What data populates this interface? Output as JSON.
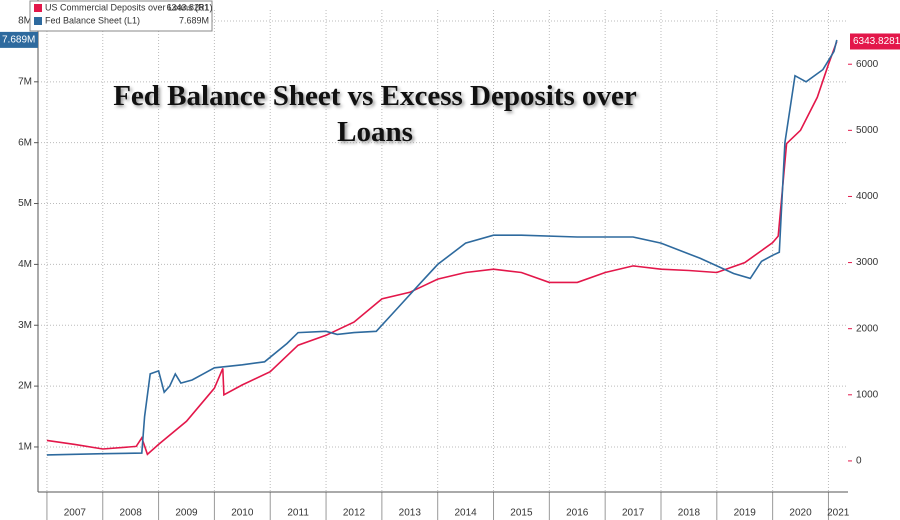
{
  "chart_data": {
    "type": "line",
    "title": "Fed Balance Sheet vs Excess Deposits over Loans",
    "xlim": [
      2006.84,
      2021.35
    ],
    "xticks": [
      2007,
      2008,
      2009,
      2010,
      2011,
      2012,
      2013,
      2014,
      2015,
      2016,
      2017,
      2018,
      2019,
      2020,
      2021
    ],
    "ylim": [
      0.26,
      8.18
    ],
    "yticks": [
      {
        "value": 1,
        "label": "1M"
      },
      {
        "value": 2,
        "label": "2M"
      },
      {
        "value": 3,
        "label": "3M"
      },
      {
        "value": 4,
        "label": "4M"
      },
      {
        "value": 5,
        "label": "5M"
      },
      {
        "value": 6,
        "label": "6M"
      },
      {
        "value": 7,
        "label": "7M"
      },
      {
        "value": 8,
        "label": "8M"
      }
    ],
    "y2lim": [
      -470,
      6820
    ],
    "y2ticks": [
      0,
      1000,
      2000,
      3000,
      4000,
      5000,
      6000
    ],
    "grid": true,
    "legend": "top-left",
    "series": [
      {
        "name": "US Commercial Deposits over Loans (R1)",
        "color": "#e3174a",
        "axis": "y2",
        "last_value_label": "6343.8281",
        "x": [
          2007.0,
          2007.5,
          2008.0,
          2008.6,
          2008.7,
          2008.8,
          2009.0,
          2009.5,
          2009.9,
          2010.0,
          2010.15,
          2010.17,
          2010.5,
          2011.0,
          2011.5,
          2012.0,
          2012.5,
          2013.0,
          2013.5,
          2014.0,
          2014.5,
          2015.0,
          2015.5,
          2016.0,
          2016.5,
          2017.0,
          2017.5,
          2018.0,
          2018.5,
          2019.0,
          2019.5,
          2020.0,
          2020.1,
          2020.25,
          2020.5,
          2020.8,
          2021.0,
          2021.15
        ],
        "values": [
          310,
          250,
          180,
          220,
          350,
          100,
          250,
          600,
          1000,
          1100,
          1400,
          1000,
          1150,
          1350,
          1750,
          1900,
          2100,
          2450,
          2550,
          2750,
          2850,
          2900,
          2850,
          2700,
          2700,
          2850,
          2950,
          2900,
          2880,
          2850,
          3000,
          3300,
          3400,
          4800,
          5000,
          5500,
          6000,
          6343.8281
        ]
      },
      {
        "name": "Fed Balance Sheet (L1)",
        "color": "#2e6a9e",
        "axis": "y",
        "last_value_label": "7.689M",
        "x": [
          2007.0,
          2008.0,
          2008.7,
          2008.75,
          2008.85,
          2009.0,
          2009.1,
          2009.2,
          2009.3,
          2009.4,
          2009.6,
          2009.8,
          2010.0,
          2010.5,
          2010.9,
          2011.3,
          2011.5,
          2012.0,
          2012.2,
          2012.5,
          2012.9,
          2013.3,
          2013.7,
          2014.0,
          2014.5,
          2015.0,
          2015.5,
          2016.5,
          2017.5,
          2018.0,
          2018.7,
          2019.3,
          2019.6,
          2019.8,
          2020.0,
          2020.12,
          2020.22,
          2020.4,
          2020.6,
          2020.9,
          2021.1,
          2021.15
        ],
        "values": [
          0.87,
          0.89,
          0.9,
          1.5,
          2.2,
          2.25,
          1.9,
          2.0,
          2.2,
          2.05,
          2.1,
          2.2,
          2.3,
          2.35,
          2.4,
          2.7,
          2.88,
          2.9,
          2.85,
          2.88,
          2.9,
          3.3,
          3.7,
          4.0,
          4.35,
          4.48,
          4.48,
          4.45,
          4.45,
          4.35,
          4.1,
          3.85,
          3.77,
          4.05,
          4.15,
          4.2,
          6.0,
          7.1,
          7.0,
          7.2,
          7.5,
          7.689
        ]
      }
    ]
  }
}
